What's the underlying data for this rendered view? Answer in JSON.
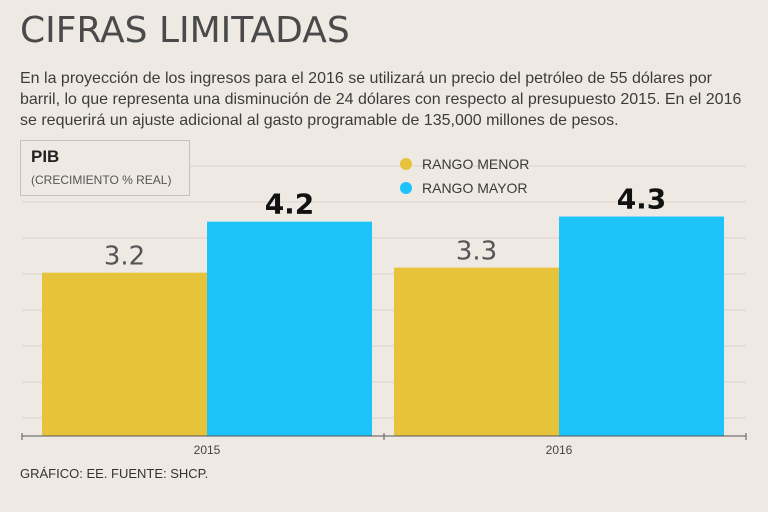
{
  "header": {
    "title": "CIFRAS LIMITADAS",
    "description": "En la proyección de los ingresos para el 2016 se utilizará un precio del petróleo de 55 dólares por barril, lo que representa una disminución de 24 dólares con respecto al presupuesto 2015. En el 2016 se requerirá un ajuste adicional al gasto programable de 135,000 millones de pesos."
  },
  "chart_box": {
    "title": "PIB",
    "subtitle": "(CRECIMIENTO % REAL)"
  },
  "legend": {
    "items": [
      {
        "label": "RANGO MENOR",
        "color": "#e6c33a"
      },
      {
        "label": "RANGO MAYOR",
        "color": "#1cc4fa"
      }
    ]
  },
  "footer": {
    "source": "GRÁFICO: EE. FUENTE: SHCP."
  },
  "chart_data": {
    "type": "bar",
    "title": "PIB",
    "subtitle": "(CRECIMIENTO % REAL)",
    "categories": [
      "2015",
      "2016"
    ],
    "series": [
      {
        "name": "RANGO MENOR",
        "values": [
          3.2,
          3.3
        ],
        "color": "#e6c33a"
      },
      {
        "name": "RANGO MAYOR",
        "values": [
          4.2,
          4.3
        ],
        "color": "#1cc4fa"
      }
    ],
    "value_labels": [
      [
        "3.2",
        "3.3"
      ],
      [
        "4.2",
        "4.3"
      ]
    ],
    "ylim": [
      0,
      5.8
    ],
    "grid": true,
    "legend_position": "top-center"
  }
}
